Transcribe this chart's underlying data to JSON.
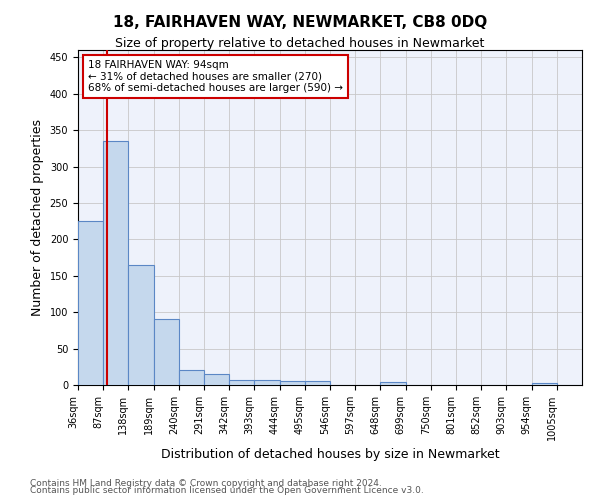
{
  "title": "18, FAIRHAVEN WAY, NEWMARKET, CB8 0DQ",
  "subtitle": "Size of property relative to detached houses in Newmarket",
  "xlabel": "Distribution of detached houses by size in Newmarket",
  "ylabel": "Number of detached properties",
  "bar_edges": [
    36,
    87,
    138,
    189,
    240,
    291,
    342,
    393,
    444,
    495,
    546,
    597,
    648,
    699,
    750,
    801,
    852,
    903,
    954,
    1005,
    1056
  ],
  "bar_heights": [
    225,
    335,
    165,
    90,
    20,
    15,
    7,
    7,
    5,
    5,
    0,
    0,
    4,
    0,
    0,
    0,
    0,
    0,
    3,
    0
  ],
  "bar_color": "#c5d8ed",
  "bar_edgecolor": "#5b87c5",
  "ylim_max": 460,
  "yticks": [
    0,
    50,
    100,
    150,
    200,
    250,
    300,
    350,
    400,
    450
  ],
  "property_size": 94,
  "vline_color": "#cc0000",
  "annotation_line1": "18 FAIRHAVEN WAY: 94sqm",
  "annotation_line2": "← 31% of detached houses are smaller (270)",
  "annotation_line3": "68% of semi-detached houses are larger (590) →",
  "annotation_box_edgecolor": "#cc0000",
  "footnote1": "Contains HM Land Registry data © Crown copyright and database right 2024.",
  "footnote2": "Contains public sector information licensed under the Open Government Licence v3.0.",
  "bg_color": "#eef2fb",
  "grid_color": "#c8c8c8",
  "tick_label_fontsize": 7,
  "ylabel_fontsize": 9,
  "xlabel_fontsize": 9,
  "title_fontsize": 11,
  "subtitle_fontsize": 9
}
